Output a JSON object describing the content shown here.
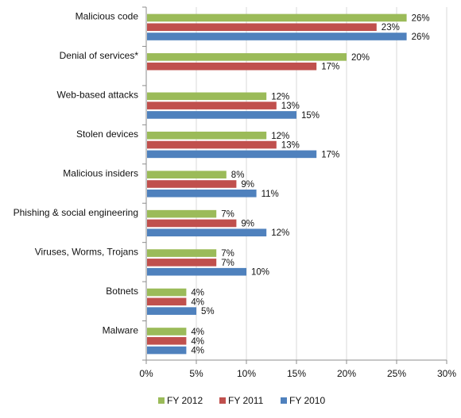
{
  "chart_data": {
    "type": "bar",
    "orientation": "horizontal",
    "categories": [
      "Malicious code",
      "Denial of services*",
      "Web-based attacks",
      "Stolen devices",
      "Malicious insiders",
      "Phishing & social engineering",
      "Viruses, Worms, Trojans",
      "Botnets",
      "Malware"
    ],
    "series": [
      {
        "name": "FY 2012",
        "color": "#9bbb59",
        "values": [
          26,
          20,
          12,
          12,
          8,
          7,
          7,
          4,
          4
        ],
        "labels": [
          "26%",
          "20%",
          "12%",
          "12%",
          "8%",
          "7%",
          "7%",
          "4%",
          "4%"
        ]
      },
      {
        "name": "FY 2011",
        "color": "#c0504d",
        "values": [
          23,
          17,
          13,
          13,
          9,
          9,
          7,
          4,
          4
        ],
        "labels": [
          "23%",
          "17%",
          "13%",
          "13%",
          "9%",
          "9%",
          "7%",
          "4%",
          "4%"
        ]
      },
      {
        "name": "FY 2010",
        "color": "#4f81bd",
        "values": [
          26,
          null,
          15,
          17,
          11,
          12,
          10,
          5,
          4
        ],
        "labels": [
          "26%",
          null,
          "15%",
          "17%",
          "11%",
          "12%",
          "10%",
          "5%",
          "4%"
        ]
      }
    ],
    "xlim": [
      0,
      30
    ],
    "xticks": [
      0,
      5,
      10,
      15,
      20,
      25,
      30
    ],
    "xtick_labels": [
      "0%",
      "5%",
      "10%",
      "15%",
      "20%",
      "25%",
      "30%"
    ],
    "grid": "vertical",
    "legend": "bottom"
  }
}
